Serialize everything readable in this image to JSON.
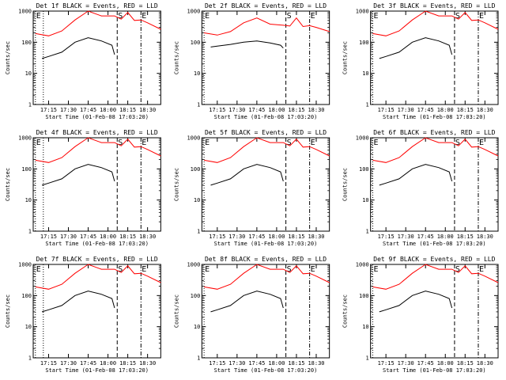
{
  "common": {
    "y_label": "Counts/sec",
    "x_label": "Start Time (01-Feb-08 17:03:20)",
    "x_ticks": [
      "17:15",
      "17:30",
      "17:45",
      "18:00",
      "18:15",
      "18:30"
    ],
    "y_ticks": [
      "1",
      "10",
      "100",
      "1000"
    ],
    "markers": {
      "E": "E",
      "S": "S"
    },
    "colors": {
      "events": "#000000",
      "lld": "#ff0000"
    }
  },
  "chart_data": [
    {
      "type": "line",
      "title": "Det 1f BLACK = Events, RED = LLD",
      "ylim": [
        1,
        1000
      ],
      "yscale": "log",
      "x_range": [
        "17:03:20",
        "18:40"
      ],
      "marker_lines": [
        {
          "time": "17:05",
          "label": "E",
          "style": "dotted"
        },
        {
          "time": "17:11",
          "label": "",
          "style": "dotted"
        },
        {
          "time": "18:07",
          "label": "S",
          "style": "dashed"
        },
        {
          "time": "18:25",
          "label": "E",
          "style": "dashdot"
        }
      ],
      "series": [
        {
          "name": "LLD",
          "color": "#ff0000",
          "x": [
            "17:05",
            "17:15",
            "17:25",
            "17:35",
            "17:45",
            "17:55",
            "18:05",
            "18:10",
            "18:15",
            "18:20",
            "18:25",
            "18:30",
            "18:40"
          ],
          "y": [
            190,
            160,
            230,
            520,
            1000,
            700,
            700,
            550,
            900,
            500,
            520,
            420,
            260
          ]
        },
        {
          "name": "Events",
          "color": "#000000",
          "x": [
            "17:10",
            "17:15",
            "17:25",
            "17:35",
            "17:45",
            "17:55",
            "18:03",
            "18:05"
          ],
          "y": [
            30,
            35,
            48,
            100,
            140,
            110,
            80,
            40
          ]
        }
      ]
    },
    {
      "type": "line",
      "title": "Det 2f BLACK = Events, RED = LLD",
      "ylim": [
        1,
        1000
      ],
      "yscale": "log",
      "x_range": [
        "17:03:20",
        "18:40"
      ],
      "marker_lines": [
        {
          "time": "17:05",
          "label": "E",
          "style": "dotted"
        },
        {
          "time": "18:07",
          "label": "S",
          "style": "dashed"
        },
        {
          "time": "18:25",
          "label": "E",
          "style": "dashdot"
        }
      ],
      "series": [
        {
          "name": "LLD",
          "color": "#ff0000",
          "x": [
            "17:05",
            "17:15",
            "17:25",
            "17:35",
            "17:45",
            "17:55",
            "18:05",
            "18:10",
            "18:15",
            "18:20",
            "18:25",
            "18:30",
            "18:40"
          ],
          "y": [
            200,
            170,
            220,
            420,
            600,
            380,
            350,
            330,
            600,
            320,
            340,
            300,
            220
          ]
        },
        {
          "name": "Events",
          "color": "#000000",
          "x": [
            "17:10",
            "17:15",
            "17:25",
            "17:35",
            "17:45",
            "17:55",
            "18:03",
            "18:05"
          ],
          "y": [
            70,
            75,
            85,
            100,
            110,
            95,
            80,
            65
          ]
        }
      ]
    },
    {
      "type": "line",
      "title": "Det 3f BLACK = Events, RED = LLD",
      "ylim": [
        1,
        1000
      ],
      "yscale": "log",
      "x_range": [
        "17:03:20",
        "18:40"
      ],
      "marker_lines": [
        {
          "time": "17:05",
          "label": "E",
          "style": "dotted"
        },
        {
          "time": "18:07",
          "label": "S",
          "style": "dashed"
        },
        {
          "time": "18:25",
          "label": "E",
          "style": "dashdot"
        }
      ],
      "series": [
        {
          "name": "LLD",
          "color": "#ff0000",
          "x": [
            "17:05",
            "17:15",
            "17:25",
            "17:35",
            "17:45",
            "17:55",
            "18:05",
            "18:10",
            "18:15",
            "18:20",
            "18:25",
            "18:30",
            "18:40"
          ],
          "y": [
            190,
            160,
            230,
            520,
            1000,
            700,
            700,
            550,
            900,
            500,
            520,
            420,
            260
          ]
        },
        {
          "name": "Events",
          "color": "#000000",
          "x": [
            "17:10",
            "17:15",
            "17:25",
            "17:35",
            "17:45",
            "17:55",
            "18:03",
            "18:05"
          ],
          "y": [
            30,
            35,
            48,
            100,
            140,
            110,
            80,
            40
          ]
        }
      ]
    },
    {
      "type": "line",
      "title": "Det 4f BLACK = Events, RED = LLD",
      "ylim": [
        1,
        1000
      ],
      "yscale": "log",
      "x_range": [
        "17:03:20",
        "18:40"
      ],
      "marker_lines": [
        {
          "time": "17:05",
          "label": "E",
          "style": "dotted"
        },
        {
          "time": "17:11",
          "label": "",
          "style": "dotted"
        },
        {
          "time": "18:07",
          "label": "S",
          "style": "dashed"
        },
        {
          "time": "18:25",
          "label": "E",
          "style": "dashdot"
        }
      ],
      "series": [
        {
          "name": "LLD",
          "color": "#ff0000",
          "x": [
            "17:05",
            "17:15",
            "17:25",
            "17:35",
            "17:45",
            "17:55",
            "18:05",
            "18:10",
            "18:15",
            "18:20",
            "18:25",
            "18:30",
            "18:40"
          ],
          "y": [
            190,
            160,
            230,
            520,
            1000,
            700,
            700,
            550,
            900,
            500,
            520,
            420,
            260
          ]
        },
        {
          "name": "Events",
          "color": "#000000",
          "x": [
            "17:10",
            "17:15",
            "17:25",
            "17:35",
            "17:45",
            "17:55",
            "18:03",
            "18:05"
          ],
          "y": [
            30,
            35,
            48,
            100,
            140,
            110,
            80,
            40
          ]
        }
      ]
    },
    {
      "type": "line",
      "title": "Det 5f BLACK = Events, RED = LLD",
      "ylim": [
        1,
        1000
      ],
      "yscale": "log",
      "x_range": [
        "17:03:20",
        "18:40"
      ],
      "marker_lines": [
        {
          "time": "17:05",
          "label": "E",
          "style": "dotted"
        },
        {
          "time": "18:07",
          "label": "S",
          "style": "dashed"
        },
        {
          "time": "18:25",
          "label": "E",
          "style": "dashdot"
        }
      ],
      "series": [
        {
          "name": "LLD",
          "color": "#ff0000",
          "x": [
            "17:05",
            "17:15",
            "17:25",
            "17:35",
            "17:45",
            "17:55",
            "18:05",
            "18:10",
            "18:15",
            "18:20",
            "18:25",
            "18:30",
            "18:40"
          ],
          "y": [
            190,
            160,
            230,
            520,
            1000,
            700,
            700,
            550,
            900,
            500,
            520,
            420,
            260
          ]
        },
        {
          "name": "Events",
          "color": "#000000",
          "x": [
            "17:10",
            "17:15",
            "17:25",
            "17:35",
            "17:45",
            "17:55",
            "18:03",
            "18:05"
          ],
          "y": [
            30,
            35,
            48,
            100,
            140,
            110,
            80,
            40
          ]
        }
      ]
    },
    {
      "type": "line",
      "title": "Det 6f BLACK = Events, RED = LLD",
      "ylim": [
        1,
        1000
      ],
      "yscale": "log",
      "x_range": [
        "17:03:20",
        "18:40"
      ],
      "marker_lines": [
        {
          "time": "17:05",
          "label": "E",
          "style": "dotted"
        },
        {
          "time": "18:07",
          "label": "S",
          "style": "dashed"
        },
        {
          "time": "18:25",
          "label": "E",
          "style": "dashdot"
        }
      ],
      "series": [
        {
          "name": "LLD",
          "color": "#ff0000",
          "x": [
            "17:05",
            "17:15",
            "17:25",
            "17:35",
            "17:45",
            "17:55",
            "18:05",
            "18:10",
            "18:15",
            "18:20",
            "18:25",
            "18:30",
            "18:40"
          ],
          "y": [
            190,
            160,
            230,
            520,
            1000,
            700,
            700,
            550,
            900,
            500,
            520,
            420,
            260
          ]
        },
        {
          "name": "Events",
          "color": "#000000",
          "x": [
            "17:10",
            "17:15",
            "17:25",
            "17:35",
            "17:45",
            "17:55",
            "18:03",
            "18:05"
          ],
          "y": [
            30,
            35,
            48,
            100,
            140,
            110,
            80,
            40
          ]
        }
      ]
    },
    {
      "type": "line",
      "title": "Det 7f BLACK = Events, RED = LLD",
      "ylim": [
        1,
        1000
      ],
      "yscale": "log",
      "x_range": [
        "17:03:20",
        "18:40"
      ],
      "marker_lines": [
        {
          "time": "17:05",
          "label": "E",
          "style": "dotted"
        },
        {
          "time": "17:11",
          "label": "",
          "style": "dotted"
        },
        {
          "time": "18:07",
          "label": "S",
          "style": "dashed"
        },
        {
          "time": "18:25",
          "label": "E",
          "style": "dashdot"
        }
      ],
      "series": [
        {
          "name": "LLD",
          "color": "#ff0000",
          "x": [
            "17:05",
            "17:15",
            "17:25",
            "17:35",
            "17:45",
            "17:55",
            "18:05",
            "18:10",
            "18:15",
            "18:20",
            "18:25",
            "18:30",
            "18:40"
          ],
          "y": [
            190,
            160,
            230,
            520,
            1000,
            700,
            700,
            550,
            900,
            500,
            520,
            420,
            260
          ]
        },
        {
          "name": "Events",
          "color": "#000000",
          "x": [
            "17:10",
            "17:15",
            "17:25",
            "17:35",
            "17:45",
            "17:55",
            "18:03",
            "18:05"
          ],
          "y": [
            30,
            35,
            48,
            100,
            140,
            110,
            80,
            40
          ]
        }
      ]
    },
    {
      "type": "line",
      "title": "Det 8f BLACK = Events, RED = LLD",
      "ylim": [
        1,
        1000
      ],
      "yscale": "log",
      "x_range": [
        "17:03:20",
        "18:40"
      ],
      "marker_lines": [
        {
          "time": "17:05",
          "label": "E",
          "style": "dotted"
        },
        {
          "time": "18:07",
          "label": "S",
          "style": "dashed"
        },
        {
          "time": "18:25",
          "label": "E",
          "style": "dashdot"
        }
      ],
      "series": [
        {
          "name": "LLD",
          "color": "#ff0000",
          "x": [
            "17:05",
            "17:15",
            "17:25",
            "17:35",
            "17:45",
            "17:55",
            "18:05",
            "18:10",
            "18:15",
            "18:20",
            "18:25",
            "18:30",
            "18:40"
          ],
          "y": [
            190,
            160,
            230,
            520,
            1000,
            700,
            700,
            550,
            900,
            500,
            520,
            420,
            260
          ]
        },
        {
          "name": "Events",
          "color": "#000000",
          "x": [
            "17:10",
            "17:15",
            "17:25",
            "17:35",
            "17:45",
            "17:55",
            "18:03",
            "18:05"
          ],
          "y": [
            30,
            35,
            48,
            100,
            140,
            110,
            80,
            40
          ]
        }
      ]
    },
    {
      "type": "line",
      "title": "Det 9f BLACK = Events, RED = LLD",
      "ylim": [
        1,
        1000
      ],
      "yscale": "log",
      "x_range": [
        "17:03:20",
        "18:40"
      ],
      "marker_lines": [
        {
          "time": "17:05",
          "label": "E",
          "style": "dotted"
        },
        {
          "time": "18:07",
          "label": "S",
          "style": "dashed"
        },
        {
          "time": "18:25",
          "label": "E",
          "style": "dashdot"
        }
      ],
      "series": [
        {
          "name": "LLD",
          "color": "#ff0000",
          "x": [
            "17:05",
            "17:15",
            "17:25",
            "17:35",
            "17:45",
            "17:55",
            "18:05",
            "18:10",
            "18:15",
            "18:20",
            "18:25",
            "18:30",
            "18:40"
          ],
          "y": [
            190,
            160,
            230,
            520,
            1000,
            700,
            700,
            550,
            900,
            500,
            520,
            420,
            260
          ]
        },
        {
          "name": "Events",
          "color": "#000000",
          "x": [
            "17:10",
            "17:15",
            "17:25",
            "17:35",
            "17:45",
            "17:55",
            "18:03",
            "18:05"
          ],
          "y": [
            30,
            35,
            48,
            100,
            140,
            110,
            80,
            40
          ]
        }
      ]
    }
  ]
}
